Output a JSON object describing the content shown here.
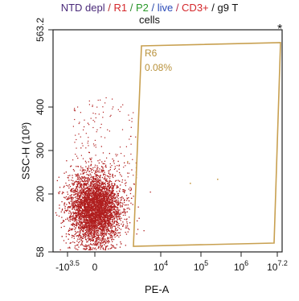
{
  "title": {
    "parts": [
      {
        "text": "NTD depl",
        "color": "#4a2a7a"
      },
      {
        "text": " / ",
        "color": "#b42a2a"
      },
      {
        "text": "R1",
        "color": "#d4262a"
      },
      {
        "text": " / ",
        "color": "#2a8a2a"
      },
      {
        "text": "P2",
        "color": "#2a9a2a"
      },
      {
        "text": " / ",
        "color": "#2a4aa8"
      },
      {
        "text": "live",
        "color": "#2a4ab8"
      },
      {
        "text": " / ",
        "color": "#b42a4a"
      },
      {
        "text": "CD3+",
        "color": "#d4262a"
      },
      {
        "text": " / g9 T",
        "color": "#111111"
      }
    ],
    "line2": "cells"
  },
  "corner_mark": "*",
  "chart_data": {
    "type": "scatter",
    "xlabel": "PE-A",
    "ylabel": "SSC-H (10³)",
    "ylim": [
      58,
      563.2
    ],
    "x_scale": "biexponential",
    "y_scale": "linear",
    "x_ticks": [
      {
        "label": "-10",
        "exp": "3.5"
      },
      {
        "label": "0",
        "exp": ""
      },
      {
        "label": "10",
        "exp": "4"
      },
      {
        "label": "10",
        "exp": "5"
      },
      {
        "label": "10",
        "exp": "6"
      },
      {
        "label": "10",
        "exp": "7.2"
      }
    ],
    "y_ticks": [
      "563.2",
      "400",
      "300",
      "200",
      "58"
    ],
    "point_color": "#b01e1e",
    "gate_color": "#c8a050",
    "gate": {
      "name": "R6",
      "percent": "0.08%"
    },
    "population": {
      "center_x_label": "0",
      "center_y": 165,
      "description_note": ""
    }
  }
}
